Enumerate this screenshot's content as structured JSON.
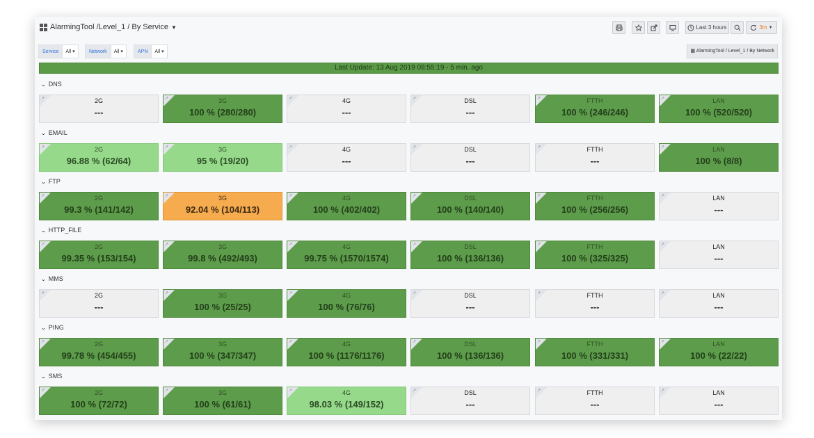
{
  "header": {
    "breadcrumb": "AlarmingTool /Level_1 / By Service",
    "time_range": "Last 3 hours",
    "refresh": "3m"
  },
  "variables": [
    {
      "label": "Service",
      "value": "All"
    },
    {
      "label": "Network",
      "value": "All"
    },
    {
      "label": "APN",
      "value": "All"
    }
  ],
  "nav_link": "AlarmingTool / Level_1 / By Network",
  "last_update": "Last Update: 13 Aug 2019 08:55:19 - 5 min. ago",
  "colors": {
    "green": "#5d9c4a",
    "light_green": "#96d98a",
    "orange": "#f5ab4e",
    "empty": "#efefef"
  },
  "rows": [
    {
      "title": "DNS",
      "cells": [
        {
          "name": "2G",
          "value": "---",
          "status": "empty"
        },
        {
          "name": "3G",
          "value": "100 % (280/280)",
          "status": "green"
        },
        {
          "name": "4G",
          "value": "---",
          "status": "empty"
        },
        {
          "name": "DSL",
          "value": "---",
          "status": "empty"
        },
        {
          "name": "FTTH",
          "value": "100 % (246/246)",
          "status": "green"
        },
        {
          "name": "LAN",
          "value": "100 % (520/520)",
          "status": "green"
        }
      ]
    },
    {
      "title": "EMAIL",
      "cells": [
        {
          "name": "2G",
          "value": "96.88 % (62/64)",
          "status": "light"
        },
        {
          "name": "3G",
          "value": "95 % (19/20)",
          "status": "light"
        },
        {
          "name": "4G",
          "value": "---",
          "status": "empty"
        },
        {
          "name": "DSL",
          "value": "---",
          "status": "empty"
        },
        {
          "name": "FTTH",
          "value": "---",
          "status": "empty"
        },
        {
          "name": "LAN",
          "value": "100 % (8/8)",
          "status": "green"
        }
      ]
    },
    {
      "title": "FTP",
      "cells": [
        {
          "name": "2G",
          "value": "99.3 % (141/142)",
          "status": "green"
        },
        {
          "name": "3G",
          "value": "92.04 % (104/113)",
          "status": "orange"
        },
        {
          "name": "4G",
          "value": "100 % (402/402)",
          "status": "green"
        },
        {
          "name": "DSL",
          "value": "100 % (140/140)",
          "status": "green"
        },
        {
          "name": "FTTH",
          "value": "100 % (256/256)",
          "status": "green"
        },
        {
          "name": "LAN",
          "value": "---",
          "status": "empty"
        }
      ]
    },
    {
      "title": "HTTP_FILE",
      "cells": [
        {
          "name": "2G",
          "value": "99.35 % (153/154)",
          "status": "green"
        },
        {
          "name": "3G",
          "value": "99.8 % (492/493)",
          "status": "green"
        },
        {
          "name": "4G",
          "value": "99.75 % (1570/1574)",
          "status": "green"
        },
        {
          "name": "DSL",
          "value": "100 % (136/136)",
          "status": "green"
        },
        {
          "name": "FTTH",
          "value": "100 % (325/325)",
          "status": "green"
        },
        {
          "name": "LAN",
          "value": "---",
          "status": "empty"
        }
      ]
    },
    {
      "title": "MMS",
      "cells": [
        {
          "name": "2G",
          "value": "---",
          "status": "empty"
        },
        {
          "name": "3G",
          "value": "100 % (25/25)",
          "status": "green"
        },
        {
          "name": "4G",
          "value": "100 % (76/76)",
          "status": "green"
        },
        {
          "name": "DSL",
          "value": "---",
          "status": "empty"
        },
        {
          "name": "FTTH",
          "value": "---",
          "status": "empty"
        },
        {
          "name": "LAN",
          "value": "---",
          "status": "empty"
        }
      ]
    },
    {
      "title": "PING",
      "cells": [
        {
          "name": "2G",
          "value": "99.78 % (454/455)",
          "status": "green"
        },
        {
          "name": "3G",
          "value": "100 % (347/347)",
          "status": "green"
        },
        {
          "name": "4G",
          "value": "100 % (1176/1176)",
          "status": "green"
        },
        {
          "name": "DSL",
          "value": "100 % (136/136)",
          "status": "green"
        },
        {
          "name": "FTTH",
          "value": "100 % (331/331)",
          "status": "green"
        },
        {
          "name": "LAN",
          "value": "100 % (22/22)",
          "status": "green"
        }
      ]
    },
    {
      "title": "SMS",
      "cells": [
        {
          "name": "2G",
          "value": "100 % (72/72)",
          "status": "green"
        },
        {
          "name": "3G",
          "value": "100 % (61/61)",
          "status": "green"
        },
        {
          "name": "4G",
          "value": "98.03 % (149/152)",
          "status": "light"
        },
        {
          "name": "DSL",
          "value": "---",
          "status": "empty"
        },
        {
          "name": "FTTH",
          "value": "---",
          "status": "empty"
        },
        {
          "name": "LAN",
          "value": "---",
          "status": "empty"
        }
      ]
    }
  ]
}
